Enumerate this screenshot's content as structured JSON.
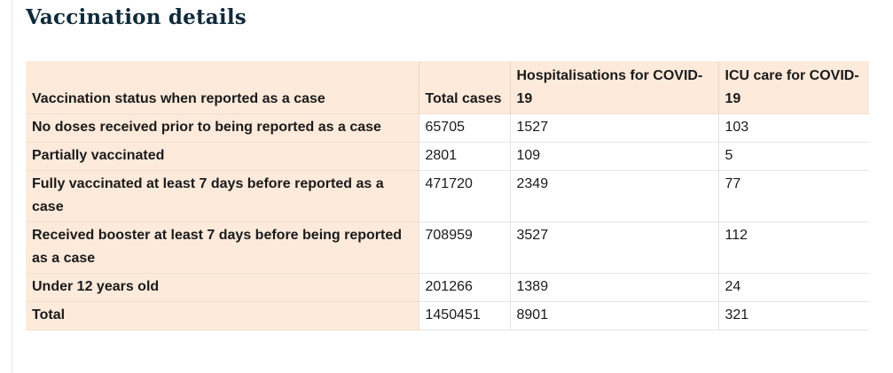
{
  "title": "Vaccination details",
  "table": {
    "headers": [
      "Vaccination status when reported as a case",
      "Total cases",
      "Hospitalisations for COVID-19",
      "ICU care for COVID-19"
    ],
    "rows": [
      {
        "status": "No doses received prior to being reported as a case",
        "cases": "65705",
        "hosp": "1527",
        "icu": "103"
      },
      {
        "status": "Partially vaccinated",
        "cases": "2801",
        "hosp": "109",
        "icu": "5"
      },
      {
        "status": "Fully vaccinated at least 7 days before reported as a case",
        "cases": "471720",
        "hosp": "2349",
        "icu": "77"
      },
      {
        "status": "Received booster at least 7 days before being reported as a case",
        "cases": "708959",
        "hosp": "3527",
        "icu": "112"
      },
      {
        "status": "Under 12 years old",
        "cases": "201266",
        "hosp": "1389",
        "icu": "24"
      },
      {
        "status": "Total",
        "cases": "1450451",
        "hosp": "8901",
        "icu": "321"
      }
    ]
  }
}
